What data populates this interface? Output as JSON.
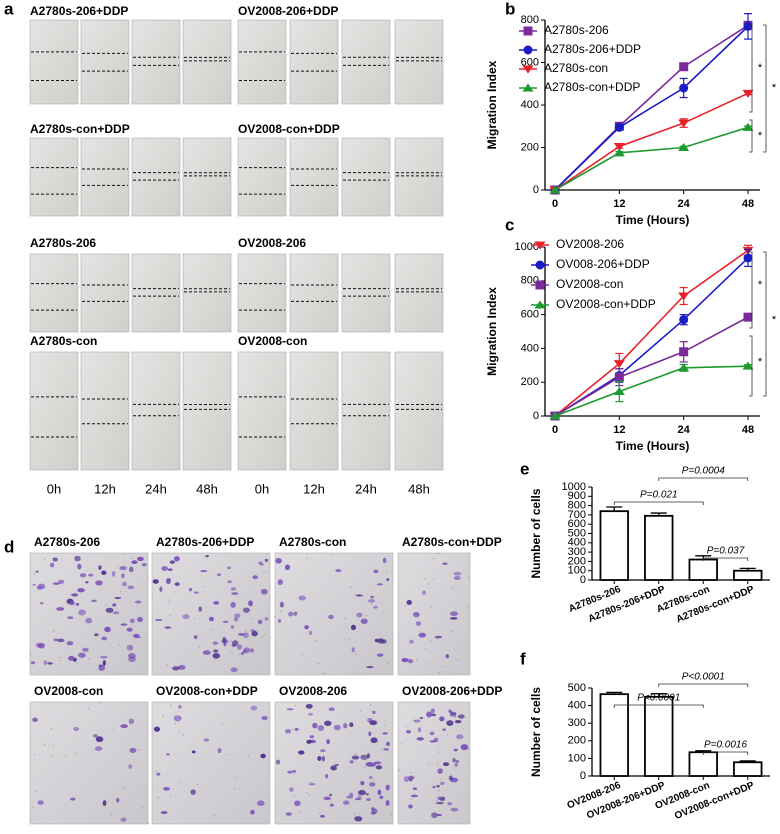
{
  "panel_a": {
    "label": "a",
    "groups": [
      "A2780s-206+DDP",
      "OV2008-206+DDP",
      "A2780s-con+DDP",
      "OV2008-con+DDP",
      "A2780s-206",
      "OV2008-206",
      "A2780s-con",
      "OV2008-con"
    ],
    "times": [
      "0h",
      "12h",
      "24h",
      "48h"
    ]
  },
  "panel_d": {
    "label": "d",
    "groups": [
      "A2780s-206",
      "A2780s-206+DDP",
      "A2780s-con",
      "A2780s-con+DDP",
      "OV2008-con",
      "OV2008-con+DDP",
      "OV2008-206",
      "OV2008-206+DDP"
    ]
  },
  "chart_data": [
    {
      "type": "line",
      "panel": "b",
      "xlabel": "Time (Hours)",
      "ylabel": "Migration Index",
      "categories": [
        "0",
        "12",
        "24",
        "48"
      ],
      "ylim": [
        0,
        800
      ],
      "yticks": [
        0,
        200,
        400,
        600,
        800
      ],
      "legend": "upper left",
      "series": [
        {
          "name": "A2780s-206",
          "color": "#7b2a9c",
          "marker": "square",
          "values": [
            0,
            300,
            580,
            775
          ],
          "errors": [
            0,
            10,
            8,
            15
          ]
        },
        {
          "name": "A2780s-206+DDP",
          "color": "#1c1cc4",
          "marker": "circle",
          "values": [
            0,
            295,
            480,
            770
          ],
          "errors": [
            0,
            12,
            45,
            60
          ]
        },
        {
          "name": "A2780s-con",
          "color": "#e8202a",
          "marker": "triangle-down",
          "values": [
            0,
            205,
            315,
            455
          ],
          "errors": [
            0,
            8,
            20,
            6
          ]
        },
        {
          "name": "A2780s-con+DDP",
          "color": "#1e9a2e",
          "marker": "triangle-up",
          "values": [
            0,
            175,
            200,
            295
          ],
          "errors": [
            0,
            6,
            6,
            6
          ]
        }
      ],
      "annotations": [
        "*",
        "*",
        "*"
      ]
    },
    {
      "type": "line",
      "panel": "c",
      "xlabel": "Time (Hours)",
      "ylabel": "Migration Index",
      "categories": [
        "0",
        "12",
        "24",
        "48"
      ],
      "ylim": [
        0,
        1000
      ],
      "yticks": [
        0,
        200,
        400,
        600,
        800,
        1000
      ],
      "legend": "upper left",
      "series": [
        {
          "name": "OV2008-206",
          "color": "#e8202a",
          "marker": "triangle-down",
          "values": [
            0,
            310,
            710,
            980
          ],
          "errors": [
            0,
            60,
            50,
            30
          ]
        },
        {
          "name": "OV008-206+DDP",
          "color": "#1c1cc4",
          "marker": "circle",
          "values": [
            0,
            240,
            570,
            935
          ],
          "errors": [
            0,
            40,
            30,
            50
          ]
        },
        {
          "name": "OV2008-con",
          "color": "#7b2a9c",
          "marker": "square",
          "values": [
            0,
            230,
            380,
            585
          ],
          "errors": [
            0,
            50,
            60,
            20
          ]
        },
        {
          "name": "OV2008-con+DDP",
          "color": "#1e9a2e",
          "marker": "triangle-up",
          "values": [
            0,
            145,
            285,
            295
          ],
          "errors": [
            0,
            60,
            20,
            8
          ]
        }
      ],
      "annotations": [
        "*",
        "*",
        "*"
      ]
    },
    {
      "type": "bar",
      "panel": "e",
      "ylabel": "Number of cells",
      "categories": [
        "A2780s-206",
        "A2780s-206+DDP",
        "A2780s-con",
        "A2780s-con+DDP"
      ],
      "values": [
        740,
        690,
        220,
        100
      ],
      "errors": [
        45,
        30,
        40,
        25
      ],
      "ylim": [
        0,
        1000
      ],
      "yticks": [
        0,
        100,
        200,
        300,
        400,
        500,
        600,
        700,
        800,
        900,
        1000
      ],
      "annotations": [
        "P=0.021",
        "P=0.0004",
        "P=0.037"
      ]
    },
    {
      "type": "bar",
      "panel": "f",
      "ylabel": "Number of cells",
      "categories": [
        "OV2008-206",
        "OV2008-206+DDP",
        "OV2008-con",
        "OV2008-con+DDP"
      ],
      "values": [
        465,
        450,
        135,
        78
      ],
      "errors": [
        10,
        18,
        8,
        8
      ],
      "ylim": [
        0,
        500
      ],
      "yticks": [
        0,
        100,
        200,
        300,
        400,
        500
      ],
      "annotations": [
        "P<0.0001",
        "P<0.0001",
        "P=0.0016"
      ]
    }
  ]
}
